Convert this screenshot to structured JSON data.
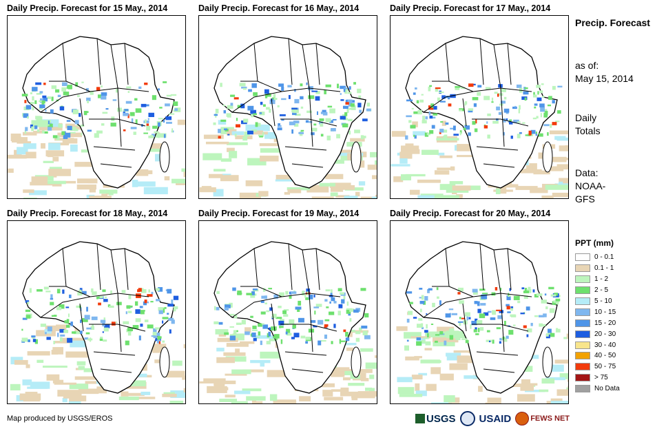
{
  "panels": [
    {
      "title": "Daily Precip. Forecast for 15 May., 2014"
    },
    {
      "title": "Daily Precip. Forecast for 16 May., 2014"
    },
    {
      "title": "Daily Precip. Forecast for 17 May., 2014"
    },
    {
      "title": "Daily Precip. Forecast for 18 May., 2014"
    },
    {
      "title": "Daily Precip. Forecast for 19 May., 2014"
    },
    {
      "title": "Daily Precip. Forecast for 20 May., 2014"
    }
  ],
  "side": {
    "title": "Precip. Forecast",
    "asof_label": "as of:",
    "asof_date": "May 15, 2014",
    "totals": "Daily Totals",
    "data_label": "Data:",
    "data_source": "NOAA-GFS"
  },
  "legend": {
    "title": "PPT (mm)",
    "items": [
      {
        "label": "0 - 0.1",
        "color": "#ffffff"
      },
      {
        "label": "0.1 - 1",
        "color": "#e8d5b5"
      },
      {
        "label": "1 - 2",
        "color": "#bdf5bd"
      },
      {
        "label": "2 - 5",
        "color": "#6ee06e"
      },
      {
        "label": "5 - 10",
        "color": "#b5ecf7"
      },
      {
        "label": "10 - 15",
        "color": "#7fb7ef"
      },
      {
        "label": "15 - 20",
        "color": "#4f95e8"
      },
      {
        "label": "20 - 30",
        "color": "#1e5ee0"
      },
      {
        "label": "30 - 40",
        "color": "#f8e58c"
      },
      {
        "label": "40 - 50",
        "color": "#f2a200"
      },
      {
        "label": "50 - 75",
        "color": "#f23b0c"
      },
      {
        "label": "> 75",
        "color": "#a31515"
      },
      {
        "label": "No Data",
        "color": "#a0a0a0"
      }
    ]
  },
  "credit": "Map produced by USGS/EROS",
  "logos": {
    "usgs": "USGS",
    "usaid": "USAID",
    "fews": "FEWS NET"
  }
}
